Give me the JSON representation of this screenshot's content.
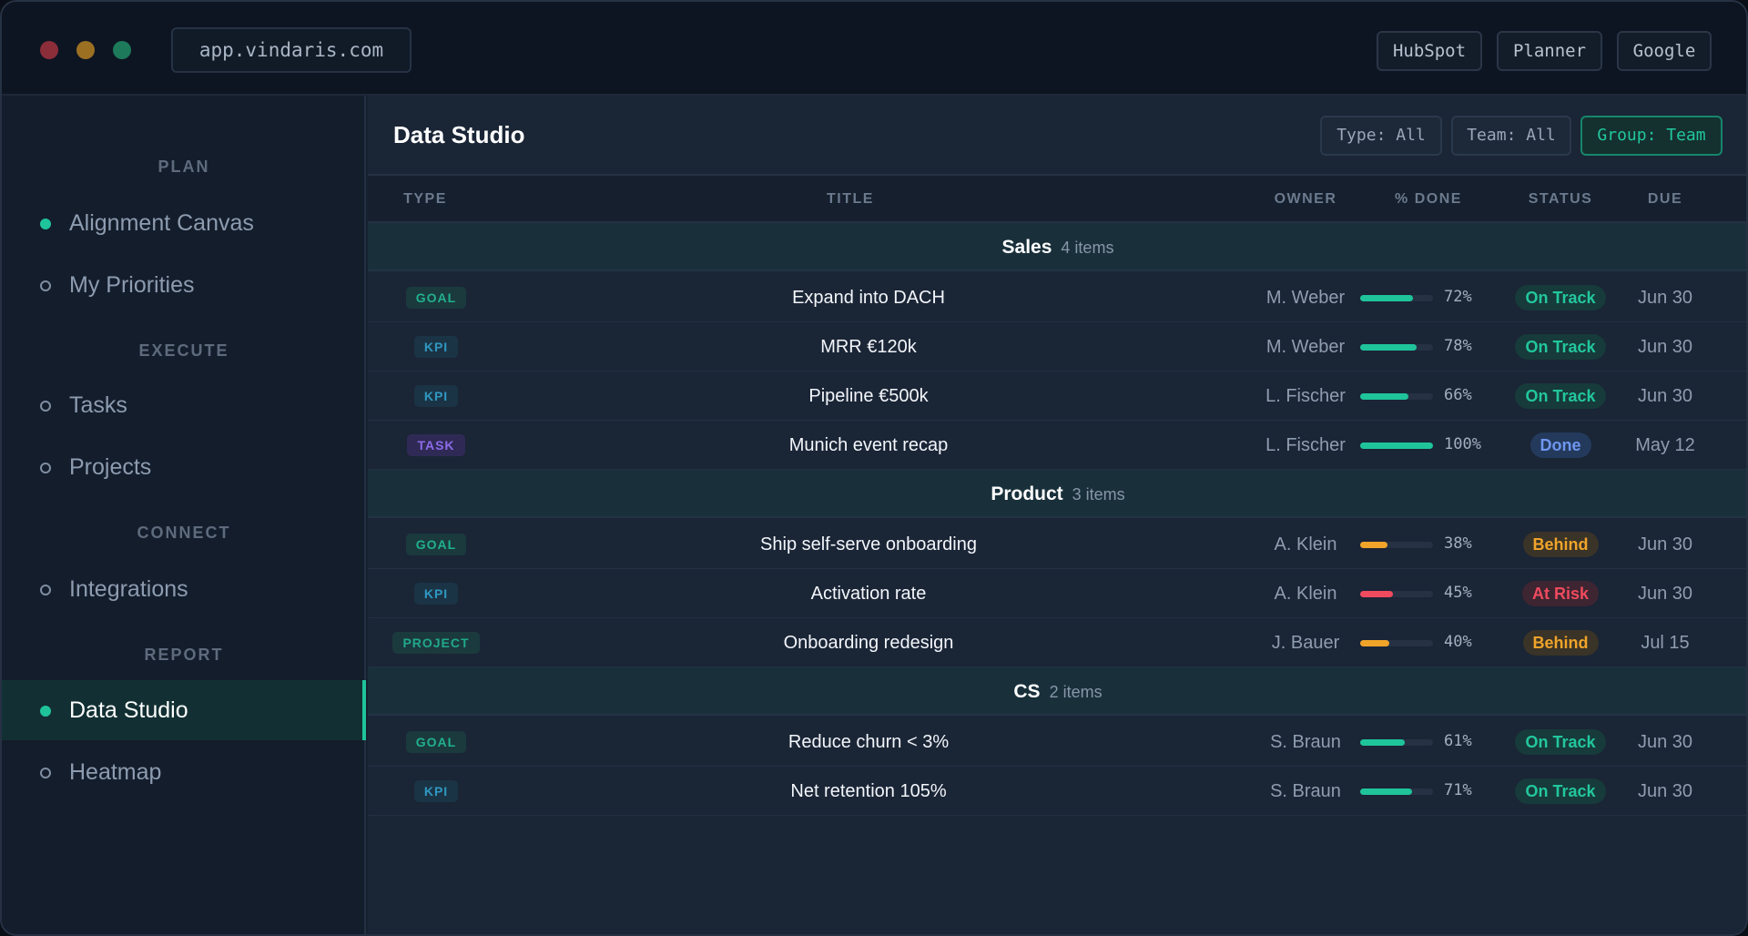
{
  "titlebar": {
    "url": "app.vindaris.com",
    "buttons": [
      "HubSpot",
      "Planner",
      "Google"
    ]
  },
  "sidebar": {
    "sections": [
      {
        "label": "PLAN",
        "items": [
          {
            "label": "Alignment Canvas",
            "filled": true
          },
          {
            "label": "My Priorities",
            "filled": false
          }
        ]
      },
      {
        "label": "EXECUTE",
        "items": [
          {
            "label": "Tasks",
            "filled": false
          },
          {
            "label": "Projects",
            "filled": false
          }
        ]
      },
      {
        "label": "CONNECT",
        "items": [
          {
            "label": "Integrations",
            "filled": false
          }
        ]
      },
      {
        "label": "REPORT",
        "items": [
          {
            "label": "Data Studio",
            "filled": true,
            "active": true
          },
          {
            "label": "Heatmap",
            "filled": false
          }
        ]
      }
    ]
  },
  "main": {
    "title": "Data Studio",
    "filters": [
      {
        "label": "Type: All",
        "active": false
      },
      {
        "label": "Team: All",
        "active": false
      },
      {
        "label": "Group: Team",
        "active": true
      }
    ],
    "columns": {
      "type": "TYPE",
      "title": "TITLE",
      "owner": "OWNER",
      "done": "% DONE",
      "status": "STATUS",
      "due": "DUE"
    }
  },
  "type_styles": {
    "GOAL": "t-goal",
    "KPI": "t-kpi",
    "TASK": "t-task",
    "PROJECT": "t-project"
  },
  "status_styles": {
    "On Track": {
      "bg": "#173a3a",
      "fg": "#22c79d"
    },
    "Done": {
      "bg": "#243a5c",
      "fg": "#6f96f0"
    },
    "Behind": {
      "bg": "#3a3327",
      "fg": "#f0a42a"
    },
    "At Risk": {
      "bg": "#3d2531",
      "fg": "#ef4a5e"
    }
  },
  "groups": [
    {
      "name": "Sales",
      "count": "4 items",
      "rows": [
        {
          "type": "GOAL",
          "title": "Expand into DACH",
          "owner": "M. Weber",
          "pct": 72,
          "pct_label": "72%",
          "bar": "#1fc49b",
          "status": "On Track",
          "due": "Jun 30"
        },
        {
          "type": "KPI",
          "title": "MRR €120k",
          "owner": "M. Weber",
          "pct": 78,
          "pct_label": "78%",
          "bar": "#1fc49b",
          "status": "On Track",
          "due": "Jun 30"
        },
        {
          "type": "KPI",
          "title": "Pipeline €500k",
          "owner": "L. Fischer",
          "pct": 66,
          "pct_label": "66%",
          "bar": "#1fc49b",
          "status": "On Track",
          "due": "Jun 30"
        },
        {
          "type": "TASK",
          "title": "Munich event recap",
          "owner": "L. Fischer",
          "pct": 100,
          "pct_label": "100%",
          "bar": "#1fc49b",
          "status": "Done",
          "due": "May 12"
        }
      ]
    },
    {
      "name": "Product",
      "count": "3 items",
      "rows": [
        {
          "type": "GOAL",
          "title": "Ship self-serve onboarding",
          "owner": "A. Klein",
          "pct": 38,
          "pct_label": "38%",
          "bar": "#f0a42a",
          "status": "Behind",
          "due": "Jun 30"
        },
        {
          "type": "KPI",
          "title": "Activation rate",
          "owner": "A. Klein",
          "pct": 45,
          "pct_label": "45%",
          "bar": "#ef4a5e",
          "status": "At Risk",
          "due": "Jun 30"
        },
        {
          "type": "PROJECT",
          "title": "Onboarding redesign",
          "owner": "J. Bauer",
          "pct": 40,
          "pct_label": "40%",
          "bar": "#f0a42a",
          "status": "Behind",
          "due": "Jul 15"
        }
      ]
    },
    {
      "name": "CS",
      "count": "2 items",
      "rows": [
        {
          "type": "GOAL",
          "title": "Reduce churn < 3%",
          "owner": "S. Braun",
          "pct": 61,
          "pct_label": "61%",
          "bar": "#1fc49b",
          "status": "On Track",
          "due": "Jun 30"
        },
        {
          "type": "KPI",
          "title": "Net retention 105%",
          "owner": "S. Braun",
          "pct": 71,
          "pct_label": "71%",
          "bar": "#1fc49b",
          "status": "On Track",
          "due": "Jun 30"
        }
      ]
    }
  ]
}
